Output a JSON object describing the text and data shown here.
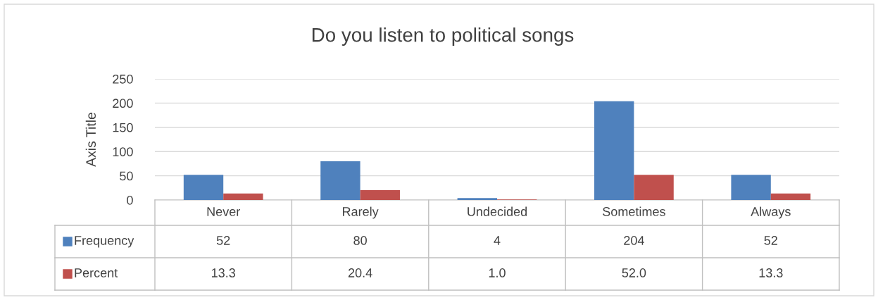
{
  "chart_data": {
    "type": "bar",
    "title": "Do you listen to political songs",
    "ylabel": "Axis Title",
    "categories": [
      "Never",
      "Rarely",
      "Undecided",
      "Sometimes",
      "Always"
    ],
    "series": [
      {
        "name": "Frequency",
        "color": "#4f81bd",
        "values": [
          52,
          80,
          4,
          204,
          52
        ],
        "value_labels": [
          "52",
          "80",
          "4",
          "204",
          "52"
        ]
      },
      {
        "name": "Percent",
        "color": "#c0504d",
        "values": [
          13.3,
          20.4,
          1.0,
          52.0,
          13.3
        ],
        "value_labels": [
          "13.3",
          "20.4",
          "1.0",
          "52.0",
          "13.3"
        ]
      }
    ],
    "ylim": [
      0,
      250
    ],
    "yticks": [
      0,
      50,
      100,
      150,
      200,
      250
    ],
    "grid": "y",
    "legend": "bottom left"
  }
}
